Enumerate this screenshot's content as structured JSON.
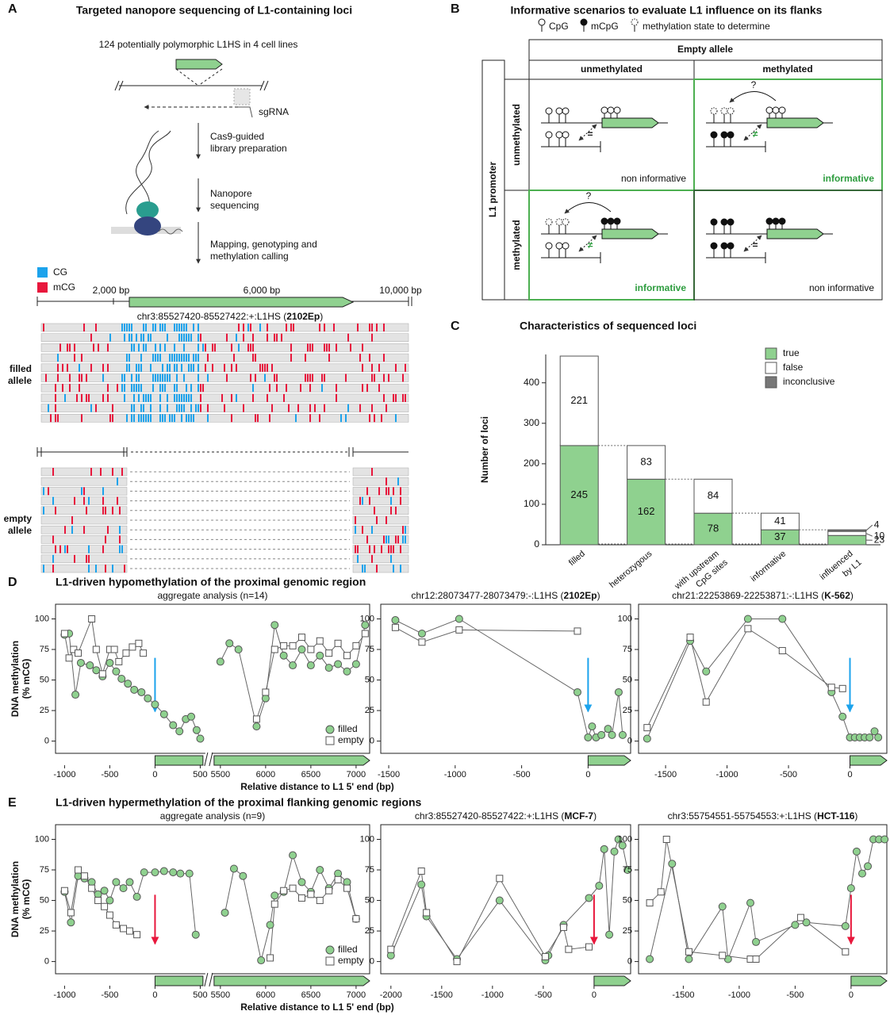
{
  "panel_a": {
    "letter": "A",
    "title": "Targeted nanopore sequencing of L1-containing loci",
    "intro": "124 potentially polymorphic L1HS in 4 cell lines",
    "sgrna": "sgRNA",
    "steps": [
      [
        "Cas9-guided",
        "library preparation"
      ],
      [
        "Nanopore",
        "sequencing"
      ],
      [
        "Mapping, genotyping and",
        "methylation calling"
      ]
    ],
    "legend": [
      {
        "label": "CG",
        "color": "#1ca3ec"
      },
      {
        "label": "mCG",
        "color": "#e8173c"
      }
    ],
    "scale_labels": [
      "2,000 bp",
      "6,000 bp",
      "10,000 bp"
    ],
    "locus": [
      "chr3:85527420-85527422:+:L1HS (",
      "2102Ep",
      ")"
    ],
    "filled_label": [
      "filled",
      "allele"
    ],
    "empty_label": [
      "empty",
      "allele"
    ]
  },
  "panel_b": {
    "letter": "B",
    "title": "Informative scenarios to evaluate L1 influence on its flanks",
    "legend": [
      "CpG",
      "mCpG",
      "methylation state to determine"
    ],
    "column_header": "Empty allele",
    "columns": [
      "unmethylated",
      "methylated"
    ],
    "row_header": "L1 promoter",
    "rows": [
      "unmethylated",
      "methylated"
    ],
    "cells": [
      [
        "non informative",
        "informative"
      ],
      [
        "informative",
        "non informative"
      ]
    ],
    "equal": "=",
    "not_equal": "≠",
    "question": "?"
  },
  "section_d": {
    "letter": "D",
    "title": "L1-driven hypomethylation of the proximal genomic region",
    "ylabel": [
      "DNA methylation",
      "(% mCG)"
    ],
    "xlabel": "Relative distance to L1 5' end (bp)"
  },
  "section_e": {
    "letter": "E",
    "title": "L1-driven hypermethylation of the proximal flanking genomic regions",
    "ylabel": [
      "DNA methylation",
      "(% mCG)"
    ],
    "xlabel": "Relative distance to L1 5' end (bp)"
  },
  "chart_data": [
    {
      "type": "bar",
      "stacked": true,
      "letter": "C",
      "title": "Characteristics of sequenced loci",
      "ylabel": "Number of loci",
      "categories": [
        [
          "filled"
        ],
        [
          "heterozygous"
        ],
        [
          "with upstream",
          "CpG sites"
        ],
        [
          "informative"
        ],
        [
          "influenced",
          "by L1"
        ]
      ],
      "series": [
        {
          "name": "true",
          "color": "#8fd18f",
          "values": [
            245,
            162,
            78,
            37,
            23
          ]
        },
        {
          "name": "false",
          "color": "#ffffff",
          "values": [
            221,
            83,
            84,
            41,
            10
          ]
        },
        {
          "name": "inconclusive",
          "color": "#777777",
          "values": [
            0,
            0,
            0,
            0,
            4
          ]
        }
      ],
      "ylim": [
        0,
        470
      ],
      "yticks": [
        0,
        100,
        200,
        300,
        400
      ]
    },
    {
      "type": "line",
      "title": [
        "aggregate analysis (n=14)"
      ],
      "legend": "lower right",
      "arrow_color": "#1ca3ec",
      "xlim": [
        [
          -1100,
          530
        ],
        [
          5430,
          7150
        ]
      ],
      "xticks": [
        -1000,
        -500,
        0,
        500,
        5500,
        6000,
        6500,
        7000
      ],
      "ylim": [
        -10,
        112
      ],
      "yticks": [
        0,
        25,
        50,
        75,
        100
      ],
      "series": [
        {
          "name": "filled",
          "marker": "circle",
          "color": "#8fd18f",
          "x": [
            -1000,
            -950,
            -880,
            -820,
            -720,
            -650,
            -580,
            -500,
            -430,
            -370,
            -300,
            -230,
            -150,
            -80,
            0,
            100,
            200,
            270,
            340,
            400,
            460,
            500,
            null,
            5500,
            5600,
            5700,
            5900,
            6000,
            6100,
            6200,
            6300,
            6400,
            6500,
            6600,
            6700,
            6800,
            6900,
            7000,
            7100
          ],
          "values": [
            87,
            88,
            38,
            64,
            62,
            58,
            53,
            64,
            57,
            51,
            47,
            42,
            40,
            35,
            30,
            22,
            13,
            8,
            18,
            20,
            9,
            2,
            null,
            65,
            80,
            75,
            12,
            35,
            95,
            70,
            62,
            75,
            62,
            70,
            60,
            63,
            57,
            63,
            95
          ]
        },
        {
          "name": "empty",
          "marker": "square",
          "color": "#ffffff",
          "x": [
            -1000,
            -950,
            -900,
            -850,
            -700,
            -650,
            -580,
            -500,
            -450,
            -400,
            -320,
            -250,
            -180,
            -130,
            null,
            5900,
            6000,
            6100,
            6200,
            6300,
            6400,
            6500,
            6600,
            6700,
            6800,
            6900,
            7000,
            7100
          ],
          "values": [
            88,
            68,
            75,
            72,
            100,
            75,
            55,
            75,
            75,
            65,
            72,
            77,
            80,
            72,
            null,
            18,
            40,
            75,
            78,
            78,
            85,
            75,
            82,
            72,
            80,
            70,
            78,
            88
          ]
        }
      ]
    },
    {
      "type": "line",
      "title": [
        "chr12:28073477-28073479:-:L1HS (",
        "2102Ep",
        ")"
      ],
      "arrow_color": "#1ca3ec",
      "xlim": [
        -1560,
        320
      ],
      "xticks": [
        -1500,
        -1000,
        -500,
        0
      ],
      "ylim": [
        -10,
        112
      ],
      "yticks": [
        0,
        25,
        50,
        75,
        100
      ],
      "series": [
        {
          "marker": "circle",
          "color": "#8fd18f",
          "x": [
            -1450,
            -1250,
            -970,
            -80,
            0,
            30,
            60,
            100,
            150,
            180,
            230,
            260
          ],
          "values": [
            99,
            88,
            100,
            40,
            3,
            12,
            3,
            5,
            10,
            5,
            40,
            5
          ]
        },
        {
          "marker": "square",
          "color": "#ffffff",
          "x": [
            -1450,
            -1250,
            -970,
            -80
          ],
          "values": [
            93,
            81,
            91,
            90
          ]
        }
      ]
    },
    {
      "type": "line",
      "title": [
        "chr21:22253869-22253871:-:L1HS (",
        "K-562",
        ")"
      ],
      "arrow_color": "#1ca3ec",
      "xlim": [
        -1720,
        300
      ],
      "xticks": [
        -1500,
        -1000,
        -500,
        0
      ],
      "ylim": [
        -10,
        112
      ],
      "yticks": [
        0,
        25,
        50,
        75,
        100
      ],
      "series": [
        {
          "marker": "circle",
          "color": "#8fd18f",
          "x": [
            -1650,
            -1300,
            -1170,
            -830,
            -550,
            -150,
            -60,
            0,
            40,
            80,
            120,
            160,
            200,
            230
          ],
          "values": [
            2,
            82,
            57,
            100,
            100,
            40,
            20,
            3,
            3,
            3,
            3,
            3,
            8,
            3
          ]
        },
        {
          "marker": "square",
          "color": "#ffffff",
          "x": [
            -1650,
            -1300,
            -1170,
            -830,
            -550,
            -150,
            -60
          ],
          "values": [
            11,
            85,
            32,
            92,
            74,
            44,
            43
          ]
        }
      ]
    },
    {
      "type": "line",
      "title": [
        "aggregate analysis (n=9)"
      ],
      "legend": "lower right",
      "arrow_color": "#e8173c",
      "xlim": [
        [
          -1100,
          530
        ],
        [
          5430,
          7150
        ]
      ],
      "xticks": [
        -1000,
        -500,
        0,
        500,
        5500,
        6000,
        6500,
        7000
      ],
      "ylim": [
        -10,
        112
      ],
      "yticks": [
        0,
        25,
        50,
        75,
        100
      ],
      "series": [
        {
          "name": "filled",
          "marker": "circle",
          "color": "#8fd18f",
          "x": [
            -1000,
            -930,
            -850,
            -780,
            -700,
            -630,
            -560,
            -500,
            -430,
            -350,
            -280,
            -200,
            -120,
            0,
            100,
            200,
            280,
            380,
            450,
            null,
            5550,
            5650,
            5750,
            5950,
            6050,
            6100,
            6200,
            6300,
            6400,
            6500,
            6600,
            6700,
            6800,
            6900,
            7000
          ],
          "values": [
            57,
            32,
            70,
            68,
            65,
            55,
            58,
            50,
            65,
            60,
            65,
            53,
            73,
            73,
            74,
            73,
            72,
            72,
            22,
            null,
            40,
            76,
            70,
            1,
            30,
            54,
            57,
            87,
            65,
            57,
            75,
            60,
            72,
            65,
            35
          ]
        },
        {
          "name": "empty",
          "marker": "square",
          "color": "#ffffff",
          "x": [
            -1000,
            -930,
            -850,
            -780,
            -700,
            -630,
            -560,
            -500,
            -430,
            -350,
            -280,
            -200,
            null,
            6050,
            6100,
            6200,
            6300,
            6400,
            6500,
            6600,
            6700,
            6800,
            6900,
            7000
          ],
          "values": [
            58,
            40,
            75,
            70,
            60,
            50,
            45,
            38,
            30,
            27,
            25,
            22,
            null,
            3,
            47,
            58,
            60,
            52,
            55,
            50,
            58,
            67,
            60,
            35
          ]
        }
      ]
    },
    {
      "type": "line",
      "title": [
        "chr3:85527420-85527422:+:L1HS (",
        "MCF-7",
        ")"
      ],
      "arrow_color": "#e8173c",
      "xlim": [
        -2100,
        360
      ],
      "xticks": [
        -2000,
        -1500,
        -1000,
        -500,
        0
      ],
      "ylim": [
        -10,
        112
      ],
      "yticks": [
        0,
        25,
        50,
        75,
        100
      ],
      "series": [
        {
          "marker": "circle",
          "color": "#8fd18f",
          "x": [
            -2000,
            -1700,
            -1650,
            -1350,
            -930,
            -480,
            -450,
            -300,
            -50,
            50,
            100,
            150,
            200,
            240,
            280,
            330
          ],
          "values": [
            5,
            63,
            37,
            2,
            50,
            1,
            5,
            30,
            52,
            62,
            92,
            22,
            90,
            100,
            95,
            75
          ]
        },
        {
          "marker": "square",
          "color": "#ffffff",
          "x": [
            -2000,
            -1700,
            -1650,
            -1350,
            -930,
            -480,
            -300,
            -250,
            -50
          ],
          "values": [
            10,
            74,
            40,
            0,
            68,
            4,
            28,
            10,
            12
          ]
        }
      ]
    },
    {
      "type": "line",
      "title": [
        "chr3:55754551-55754553:+:L1HS (",
        "HCT-116",
        ")"
      ],
      "arrow_color": "#e8173c",
      "xlim": [
        -1900,
        320
      ],
      "xticks": [
        -1500,
        -1000,
        -500,
        0
      ],
      "ylim": [
        -10,
        112
      ],
      "yticks": [
        0,
        25,
        50,
        75,
        100
      ],
      "series": [
        {
          "marker": "circle",
          "color": "#8fd18f",
          "x": [
            -1800,
            -1600,
            -1450,
            -1150,
            -1100,
            -900,
            -850,
            -500,
            -400,
            -50,
            0,
            50,
            100,
            150,
            200,
            250,
            300
          ],
          "values": [
            2,
            80,
            2,
            45,
            2,
            48,
            16,
            30,
            32,
            29,
            60,
            90,
            72,
            78,
            100,
            100,
            100
          ]
        },
        {
          "marker": "square",
          "color": "#ffffff",
          "x": [
            -1800,
            -1700,
            -1650,
            -1450,
            -1150,
            -900,
            -850,
            -450,
            -50
          ],
          "values": [
            48,
            57,
            100,
            8,
            5,
            2,
            2,
            36,
            8
          ]
        }
      ]
    }
  ]
}
